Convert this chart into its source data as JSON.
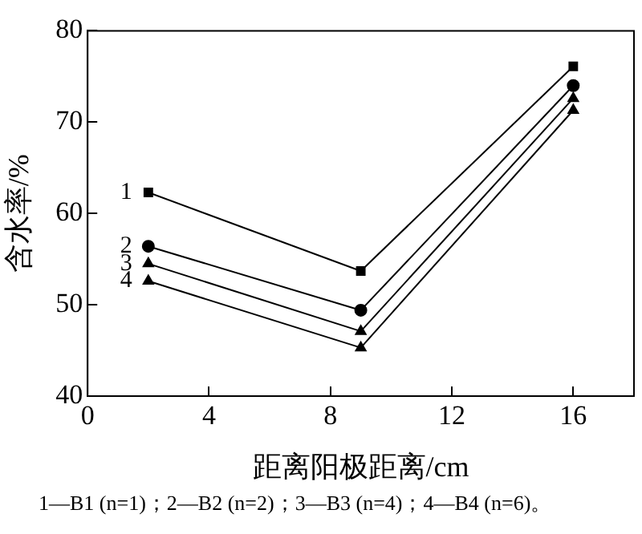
{
  "chart_data": {
    "type": "line",
    "xlabel": "距离阳极距离/cm",
    "ylabel": "含水率/%",
    "x": [
      2,
      9,
      16
    ],
    "xlim": [
      0,
      18
    ],
    "xticks": [
      0,
      4,
      8,
      12,
      16
    ],
    "ylim": [
      40,
      80
    ],
    "yticks": [
      40,
      50,
      60,
      70,
      80
    ],
    "grid": false,
    "legend": false,
    "line_style": "solid",
    "series": [
      {
        "name": "1",
        "color": "#000000",
        "marker": "square",
        "values": [
          62.3,
          53.7,
          76.1
        ]
      },
      {
        "name": "2",
        "color": "#000000",
        "marker": "circle",
        "values": [
          56.4,
          49.4,
          74.0
        ]
      },
      {
        "name": "3",
        "color": "#000000",
        "marker": "triangle",
        "values": [
          54.5,
          47.1,
          72.6
        ]
      },
      {
        "name": "4",
        "color": "#000000",
        "marker": "triangle",
        "values": [
          52.6,
          45.3,
          71.3
        ]
      }
    ],
    "annotations": [
      "1—B1 (n=1)；2—B2 (n=2)；3—B3 (n=4)；4—B4 (n=6)。"
    ]
  }
}
